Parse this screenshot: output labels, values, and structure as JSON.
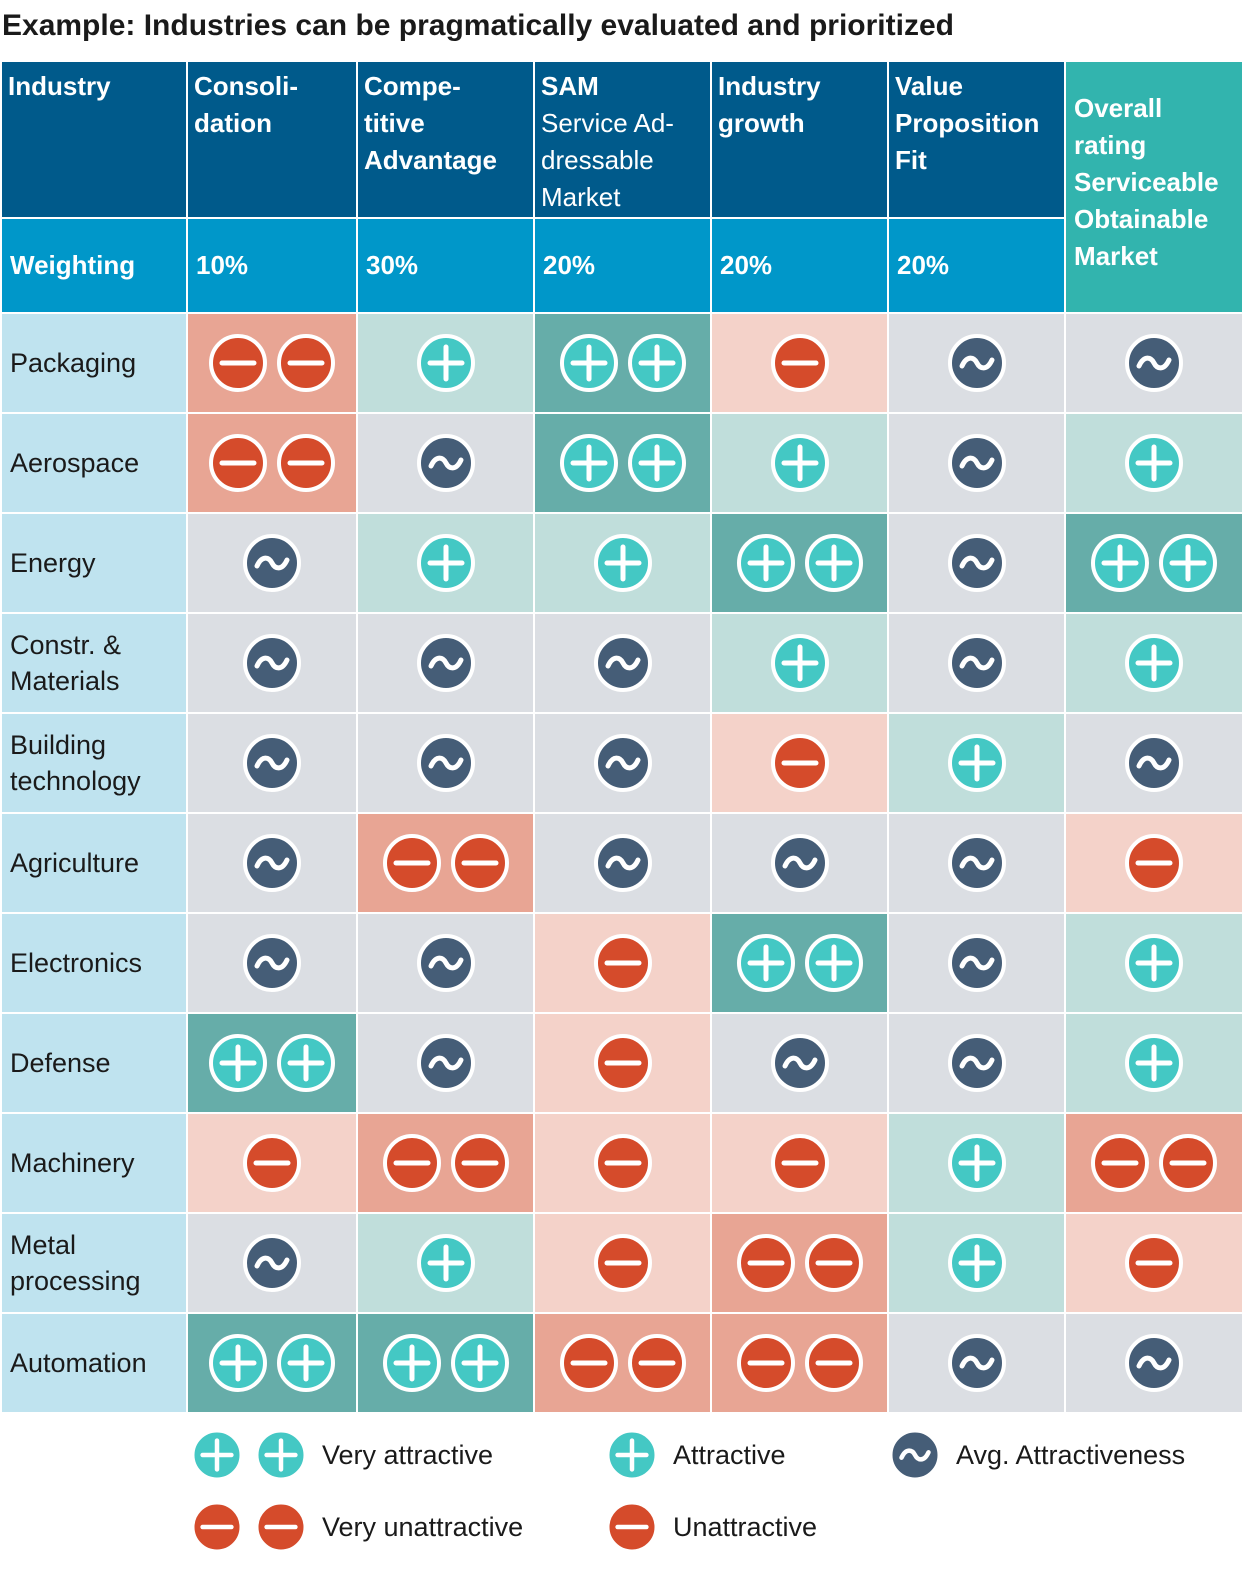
{
  "title": "Example: Industries can be pragmatically evaluated and prioritized",
  "colors": {
    "header_dark": "#005a8b",
    "header_weight": "#0097c9",
    "header_overall": "#32b4ae",
    "industry_bg": "#bfe3ef",
    "very_attractive_bg": "#66ada9",
    "attractive_bg": "#c0dedb",
    "avg_bg": "#dbdee3",
    "unattractive_bg": "#f4d2c9",
    "very_unattractive_bg": "#e8a594",
    "plus_icon": "#44c8c4",
    "minus_icon": "#d54b2b",
    "tilde_icon": "#455d77"
  },
  "header": {
    "industry": "Industry",
    "weighting": "Weighting",
    "columns": [
      {
        "lines": [
          "Consoli-",
          "dation"
        ],
        "thin_lines": [],
        "weight": "10%"
      },
      {
        "lines": [
          "Compe-",
          "titive",
          "Advantage"
        ],
        "thin_lines": [],
        "weight": "30%"
      },
      {
        "lines": [
          "SAM"
        ],
        "thin_lines": [
          "Service Ad-",
          "dressable",
          "Market"
        ],
        "weight": "20%"
      },
      {
        "lines": [
          "Industry",
          "growth"
        ],
        "thin_lines": [],
        "weight": "20%"
      },
      {
        "lines": [
          "Value",
          "Proposition",
          "Fit"
        ],
        "thin_lines": [],
        "weight": "20%"
      }
    ],
    "overall": [
      "Overall",
      "rating",
      "Serviceable",
      "Obtainable",
      "Market"
    ]
  },
  "legend": {
    "very_attractive": "Very attractive",
    "attractive": "Attractive",
    "avg": "Avg. Attractiveness",
    "very_unattractive": "Very unattractive",
    "unattractive": "Unattractive"
  },
  "chart_data": {
    "type": "table",
    "scale": {
      "2": "very attractive",
      "1": "attractive",
      "0": "avg. attractiveness",
      "-1": "unattractive",
      "-2": "very unattractive"
    },
    "columns": [
      "Consolidation",
      "Competitive Advantage",
      "SAM Service Addressable Market",
      "Industry growth",
      "Value Proposition Fit",
      "Overall rating Serviceable Obtainable Market"
    ],
    "rows": [
      {
        "industry": "Packaging",
        "ratings": [
          -2,
          1,
          2,
          -1,
          0,
          0
        ]
      },
      {
        "industry": "Aerospace",
        "ratings": [
          -2,
          0,
          2,
          1,
          0,
          1
        ]
      },
      {
        "industry": "Energy",
        "ratings": [
          0,
          1,
          1,
          2,
          0,
          2
        ]
      },
      {
        "industry": "Constr. & Materials",
        "lines": [
          "Constr. &",
          "Materials"
        ],
        "ratings": [
          0,
          0,
          0,
          1,
          0,
          1
        ]
      },
      {
        "industry": "Building technology",
        "lines": [
          "Building",
          "technology"
        ],
        "ratings": [
          0,
          0,
          0,
          -1,
          1,
          0
        ]
      },
      {
        "industry": "Agriculture",
        "ratings": [
          0,
          -2,
          0,
          0,
          0,
          -1
        ]
      },
      {
        "industry": "Electronics",
        "ratings": [
          0,
          0,
          -1,
          2,
          0,
          1
        ]
      },
      {
        "industry": "Defense",
        "ratings": [
          2,
          0,
          -1,
          0,
          0,
          1
        ]
      },
      {
        "industry": "Machinery",
        "ratings": [
          -1,
          -2,
          -1,
          -1,
          1,
          -2
        ]
      },
      {
        "industry": "Metal processing",
        "lines": [
          "Metal",
          "processing"
        ],
        "ratings": [
          0,
          1,
          -1,
          -2,
          1,
          -1
        ]
      },
      {
        "industry": "Automation",
        "ratings": [
          2,
          2,
          -2,
          -2,
          0,
          0
        ]
      }
    ]
  }
}
